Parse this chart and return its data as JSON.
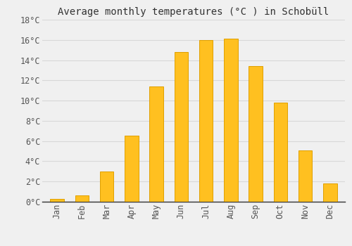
{
  "title": "Average monthly temperatures (°C ) in Schobüll",
  "months": [
    "Jan",
    "Feb",
    "Mar",
    "Apr",
    "May",
    "Jun",
    "Jul",
    "Aug",
    "Sep",
    "Oct",
    "Nov",
    "Dec"
  ],
  "values": [
    0.3,
    0.6,
    3.0,
    6.5,
    11.4,
    14.8,
    16.0,
    16.1,
    13.4,
    9.8,
    5.1,
    1.8
  ],
  "bar_color": "#FFC020",
  "bar_edge_color": "#E0A000",
  "ylim": [
    0,
    18
  ],
  "yticks": [
    0,
    2,
    4,
    6,
    8,
    10,
    12,
    14,
    16,
    18
  ],
  "background_color": "#f0f0f0",
  "grid_color": "#d8d8d8",
  "title_fontsize": 10,
  "tick_fontsize": 8.5,
  "bar_width": 0.55
}
